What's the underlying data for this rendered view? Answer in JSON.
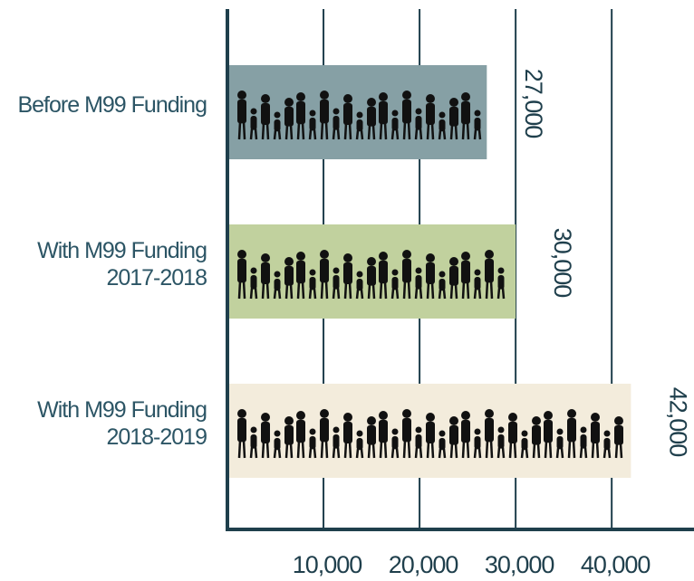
{
  "chart_data": {
    "type": "bar",
    "orientation": "horizontal",
    "categories": [
      "Before M99 Funding",
      "With M99 Funding\n2017-2018",
      "With M99 Funding\n2018-2019"
    ],
    "values": [
      27000,
      30000,
      42000
    ],
    "value_labels": [
      "27,000",
      "30,000",
      "42,000"
    ],
    "colors": [
      "#86a0a5",
      "#c1d19e",
      "#f3ecdc"
    ],
    "xlim": [
      0,
      48000
    ],
    "xticks": [
      {
        "value": 10000,
        "label": "10,000"
      },
      {
        "value": 20000,
        "label": "20,000"
      },
      {
        "value": 30000,
        "label": "30,000"
      },
      {
        "value": 40000,
        "label": "40,000"
      }
    ],
    "grid": true
  }
}
